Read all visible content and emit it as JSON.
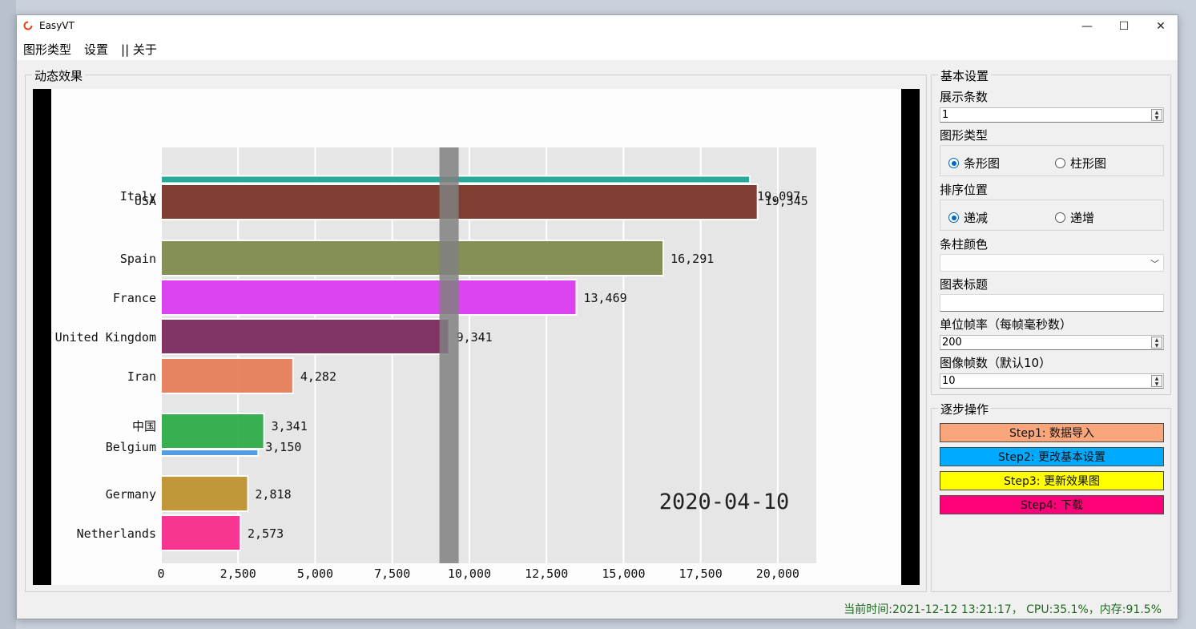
{
  "window": {
    "title": "EasyVT",
    "minimize": "—",
    "maximize": "☐",
    "close": "✕"
  },
  "menu": [
    "图形类型",
    "设置",
    "|| 关于"
  ],
  "effect_group": {
    "title": "动态效果"
  },
  "chart_data": {
    "type": "bar",
    "orientation": "horizontal",
    "date_label": "2020-04-10",
    "xlim": [
      0,
      21250
    ],
    "x_ticks": [
      0,
      2500,
      5000,
      7500,
      10000,
      12500,
      15000,
      17500,
      20000
    ],
    "x_tick_labels": [
      "0",
      "2,500",
      "5,000",
      "7,500",
      "10,000",
      "12,500",
      "15,000",
      "17,500",
      "20,000"
    ],
    "bars": [
      {
        "label": "Italy",
        "value": 19097,
        "value_label": "19,097",
        "color": "#1fa693"
      },
      {
        "label": "USA",
        "value": 19345,
        "value_label": "19,345",
        "color": "#7b3528"
      },
      {
        "label": "Spain",
        "value": 16291,
        "value_label": "16,291",
        "color": "#7f8c4f"
      },
      {
        "label": "France",
        "value": 13469,
        "value_label": "13,469",
        "color": "#dc3cf0"
      },
      {
        "label": "United Kingdom",
        "value": 9341,
        "value_label": "9,341",
        "color": "#7b2a5e"
      },
      {
        "label": "Iran",
        "value": 4282,
        "value_label": "4,282",
        "color": "#e77f5b"
      },
      {
        "label": "中国",
        "value": 3341,
        "value_label": "3,341",
        "color": "#2fae4b"
      },
      {
        "label": "Belgium",
        "value": 3150,
        "value_label": "3,150",
        "color": "#4a9ae0"
      },
      {
        "label": "Germany",
        "value": 2818,
        "value_label": "2,818",
        "color": "#bf9330"
      },
      {
        "label": "Netherlands",
        "value": 2573,
        "value_label": "2,573",
        "color": "#fa2d8e"
      }
    ],
    "marker_value": 9341,
    "marker_color": "#808080",
    "background": "#e6e6e6"
  },
  "settings": {
    "group_title": "基本设置",
    "show_count_label": "展示条数",
    "show_count_value": "1",
    "chart_type_label": "图形类型",
    "chart_type_options": [
      "条形图",
      "柱形图"
    ],
    "chart_type_selected": "条形图",
    "sort_label": "排序位置",
    "sort_options": [
      "递减",
      "递增"
    ],
    "sort_selected": "递减",
    "bar_color_label": "条柱颜色",
    "bar_color_value": "",
    "chart_title_label": "图表标题",
    "chart_title_value": "",
    "frame_rate_label": "单位帧率（每帧毫秒数）",
    "frame_rate_value": "200",
    "frame_count_label": "图像帧数（默认10）",
    "frame_count_value": "10"
  },
  "steps": {
    "group_title": "逐步操作",
    "buttons": [
      {
        "label": "Step1: 数据导入",
        "color": "#f9a67c"
      },
      {
        "label": "Step2: 更改基本设置",
        "color": "#00aaff"
      },
      {
        "label": "Step3: 更新效果图",
        "color": "#ffff00"
      },
      {
        "label": "Step4: 下载",
        "color": "#ff0078"
      }
    ]
  },
  "status": "当前时间:2021-12-12 13:21:17， CPU:35.1%，内存:91.5%"
}
